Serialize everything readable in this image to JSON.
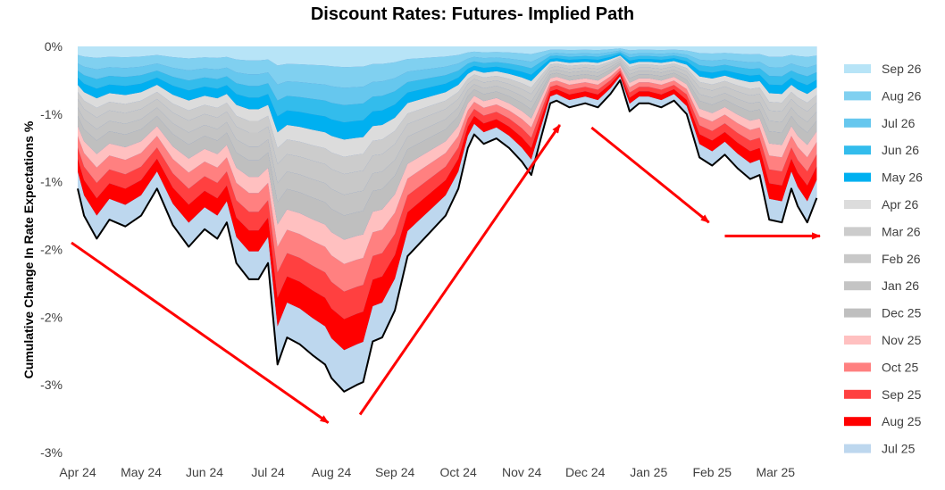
{
  "chart_data": {
    "type": "area",
    "title": "Discount Rates: Futures- Implied Path",
    "ylabel": "Cumulative Change In Rate Expectations %",
    "xlabel": "",
    "y_tick_labels": [
      "0%",
      "-1%",
      "-1%",
      "-2%",
      "-2%",
      "-3%",
      "-3%"
    ],
    "y_tick_values": [
      0,
      -0.5,
      -1.0,
      -1.5,
      -2.0,
      -2.5,
      -3.0
    ],
    "ylim": [
      -3.0,
      0
    ],
    "x_tick_labels": [
      "Apr 24",
      "May 24",
      "Jun 24",
      "Jul 24",
      "Aug 24",
      "Sep 24",
      "Oct 24",
      "Nov 24",
      "Dec 24",
      "Jan 25",
      "Feb 25",
      "Mar 25"
    ],
    "x_tick_values": [
      0,
      1,
      2,
      3,
      4,
      5,
      6,
      7,
      8,
      9,
      10,
      11
    ],
    "xlim": [
      0,
      11.7
    ],
    "total_path": {
      "x": [
        0,
        0.1,
        0.3,
        0.5,
        0.75,
        1.0,
        1.25,
        1.5,
        1.75,
        2.0,
        2.2,
        2.35,
        2.5,
        2.7,
        2.85,
        3.0,
        3.15,
        3.3,
        3.5,
        3.7,
        3.9,
        4.0,
        4.2,
        4.4,
        4.5,
        4.65,
        4.8,
        5.0,
        5.2,
        5.4,
        5.6,
        5.8,
        6.0,
        6.15,
        6.25,
        6.4,
        6.6,
        6.8,
        7.0,
        7.15,
        7.3,
        7.45,
        7.55,
        7.75,
        8.0,
        8.2,
        8.4,
        8.55,
        8.7,
        8.85,
        9.0,
        9.2,
        9.4,
        9.6,
        9.8,
        10.0,
        10.2,
        10.4,
        10.6,
        10.75,
        10.9,
        11.1,
        11.25,
        11.35,
        11.5,
        11.65
      ],
      "values": [
        -1.05,
        -1.25,
        -1.42,
        -1.28,
        -1.33,
        -1.25,
        -1.05,
        -1.32,
        -1.48,
        -1.35,
        -1.42,
        -1.3,
        -1.6,
        -1.72,
        -1.72,
        -1.6,
        -2.35,
        -2.15,
        -2.2,
        -2.28,
        -2.35,
        -2.45,
        -2.55,
        -2.5,
        -2.48,
        -2.18,
        -2.15,
        -1.95,
        -1.55,
        -1.45,
        -1.35,
        -1.25,
        -1.05,
        -0.75,
        -0.65,
        -0.72,
        -0.68,
        -0.75,
        -0.85,
        -0.95,
        -0.68,
        -0.42,
        -0.4,
        -0.45,
        -0.42,
        -0.45,
        -0.35,
        -0.25,
        -0.48,
        -0.42,
        -0.42,
        -0.45,
        -0.4,
        -0.5,
        -0.82,
        -0.88,
        -0.8,
        -0.9,
        -0.98,
        -0.95,
        -1.28,
        -1.3,
        -1.05,
        -1.18,
        -1.3,
        -1.12
      ]
    },
    "series": [
      {
        "name": "Jul 25",
        "color": "#BDD7EE",
        "share": 0.12
      },
      {
        "name": "Aug 25",
        "color": "#FF0000",
        "share": 0.09
      },
      {
        "name": "Sep 25",
        "color": "#FF4040",
        "share": 0.08
      },
      {
        "name": "Oct 25",
        "color": "#FF8080",
        "share": 0.08
      },
      {
        "name": "Nov 25",
        "color": "#FFC0C0",
        "share": 0.07
      },
      {
        "name": "Dec 25",
        "color": "#BFBFBF",
        "share": 0.07
      },
      {
        "name": "Jan 26",
        "color": "#C4C4C4",
        "share": 0.06
      },
      {
        "name": "Feb 26",
        "color": "#C8C8C8",
        "share": 0.06
      },
      {
        "name": "Mar 26",
        "color": "#CCCCCC",
        "share": 0.05
      },
      {
        "name": "Apr 26",
        "color": "#DCDCDC",
        "share": 0.05
      },
      {
        "name": "May 26",
        "color": "#00B0F0",
        "share": 0.05
      },
      {
        "name": "Jun 26",
        "color": "#33BCEC",
        "share": 0.05
      },
      {
        "name": "Jul 26",
        "color": "#66C7EE",
        "share": 0.05
      },
      {
        "name": "Aug 26",
        "color": "#80D0F0",
        "share": 0.06
      },
      {
        "name": "Sep 26",
        "color": "#B7E4F7",
        "share": 0.06
      }
    ],
    "legend_order": [
      "Sep 26",
      "Aug 26",
      "Jul 26",
      "Jun 26",
      "May 26",
      "Apr 26",
      "Mar 26",
      "Feb 26",
      "Jan 26",
      "Dec 25",
      "Nov 25",
      "Oct 25",
      "Sep 25",
      "Aug 25",
      "Jul 25"
    ],
    "legend_position": "right",
    "background_fill_color": "#4472C4",
    "line_color": "#000000",
    "annotations": [
      {
        "type": "arrow",
        "color": "#FF0000",
        "from": [
          0,
          -1.45
        ],
        "to": [
          3.95,
          -2.78
        ]
      },
      {
        "type": "arrow",
        "color": "#FF0000",
        "from": [
          4.45,
          -2.72
        ],
        "to": [
          7.6,
          -0.58
        ]
      },
      {
        "type": "arrow",
        "color": "#FF0000",
        "from": [
          8.1,
          -0.6
        ],
        "to": [
          9.95,
          -1.3
        ]
      },
      {
        "type": "arrow",
        "color": "#FF0000",
        "from": [
          10.2,
          -1.4
        ],
        "to": [
          11.7,
          -1.4
        ]
      }
    ]
  }
}
